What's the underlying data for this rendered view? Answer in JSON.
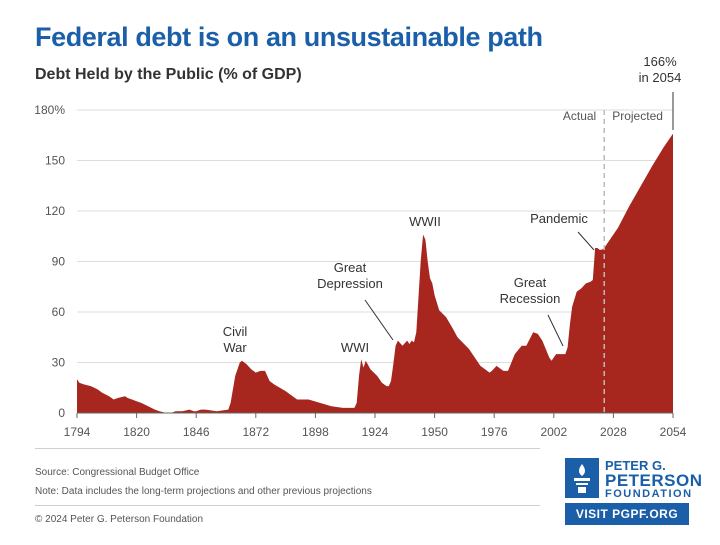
{
  "title": "Federal debt is on an unsustainable path",
  "subtitle": "Debt Held by the Public (% of GDP)",
  "chart_data": {
    "type": "area",
    "title": "Federal debt is on an unsustainable path",
    "ylabel": "Debt Held by the Public (% of GDP)",
    "xlabel": "",
    "xlim": [
      1794,
      2054
    ],
    "ylim": [
      0,
      180
    ],
    "grid": true,
    "color": "#a7261e",
    "x_ticks": [
      "1794",
      "1820",
      "1846",
      "1872",
      "1898",
      "1924",
      "1950",
      "1976",
      "2002",
      "2028",
      "2054"
    ],
    "x_tick_values": [
      1794,
      1820,
      1846,
      1872,
      1898,
      1924,
      1950,
      1976,
      2002,
      2028,
      2054
    ],
    "y_ticks": [
      "0",
      "30",
      "60",
      "90",
      "120",
      "150",
      "180%"
    ],
    "y_tick_values": [
      0,
      30,
      60,
      90,
      120,
      150,
      180
    ],
    "divider_year": 2024,
    "divider_labels": {
      "left": "Actual",
      "right": "Projected"
    },
    "series": [
      {
        "name": "Debt Held by the Public",
        "x": [
          1794,
          1795,
          1797,
          1800,
          1803,
          1805,
          1808,
          1810,
          1812,
          1815,
          1816,
          1818,
          1820,
          1822,
          1825,
          1828,
          1830,
          1833,
          1835,
          1837,
          1840,
          1843,
          1845,
          1846,
          1848,
          1850,
          1855,
          1860,
          1861,
          1863,
          1865,
          1866,
          1868,
          1870,
          1872,
          1874,
          1876,
          1878,
          1880,
          1885,
          1890,
          1893,
          1895,
          1900,
          1905,
          1910,
          1915,
          1916,
          1917,
          1918,
          1919,
          1920,
          1922,
          1925,
          1927,
          1929,
          1930,
          1931,
          1932,
          1933,
          1934,
          1936,
          1938,
          1939,
          1940,
          1941,
          1942,
          1943,
          1944,
          1945,
          1946,
          1947,
          1948,
          1949,
          1950,
          1952,
          1955,
          1958,
          1960,
          1965,
          1970,
          1974,
          1975,
          1977,
          1980,
          1982,
          1985,
          1988,
          1990,
          1993,
          1995,
          1997,
          2000,
          2001,
          2003,
          2005,
          2007,
          2008,
          2009,
          2010,
          2012,
          2014,
          2016,
          2018,
          2019,
          2020,
          2021,
          2022,
          2023,
          2024,
          2026,
          2030,
          2035,
          2040,
          2045,
          2050,
          2054
        ],
        "values": [
          20,
          18,
          17,
          16,
          14,
          12,
          10,
          8,
          9,
          10,
          9,
          8,
          7,
          6,
          4,
          2,
          1,
          0,
          0,
          1,
          1,
          2,
          1,
          1,
          2,
          2,
          1,
          2,
          6,
          22,
          30,
          31,
          29,
          26,
          24,
          25,
          25,
          19,
          17,
          13,
          8,
          8,
          8,
          6,
          4,
          3,
          3,
          6,
          22,
          32,
          27,
          31,
          26,
          22,
          18,
          16,
          16,
          19,
          29,
          40,
          43,
          40,
          43,
          41,
          43,
          42,
          48,
          70,
          91,
          106,
          103,
          90,
          80,
          77,
          70,
          61,
          57,
          50,
          45,
          38,
          28,
          24,
          25,
          28,
          25,
          25,
          35,
          40,
          40,
          48,
          47,
          43,
          33,
          31,
          35,
          35,
          35,
          39,
          52,
          63,
          72,
          74,
          77,
          78,
          79,
          98,
          98,
          97,
          97,
          98,
          102,
          110,
          123,
          135,
          147,
          158,
          166
        ]
      }
    ],
    "annotations": [
      {
        "label": "Civil\nWar",
        "year": 1865
      },
      {
        "label": "WWI",
        "year": 1919
      },
      {
        "label": "Great\nDepression",
        "year": 1933
      },
      {
        "label": "WWII",
        "year": 1946
      },
      {
        "label": "Great\nRecession",
        "year": 2009
      },
      {
        "label": "Pandemic",
        "year": 2020
      },
      {
        "label": "166%\nin 2054",
        "year": 2054
      }
    ]
  },
  "footer": {
    "source": "Source: Congressional Budget Office",
    "note": "Note: Data includes the long-term projections and other previous projections",
    "copyright": "© 2024 Peter G. Peterson Foundation"
  },
  "logo": {
    "line1": "PETER G.",
    "line2": "PETERSON",
    "line3": "FOUNDATION",
    "cta": "VISIT PGPF.ORG"
  }
}
